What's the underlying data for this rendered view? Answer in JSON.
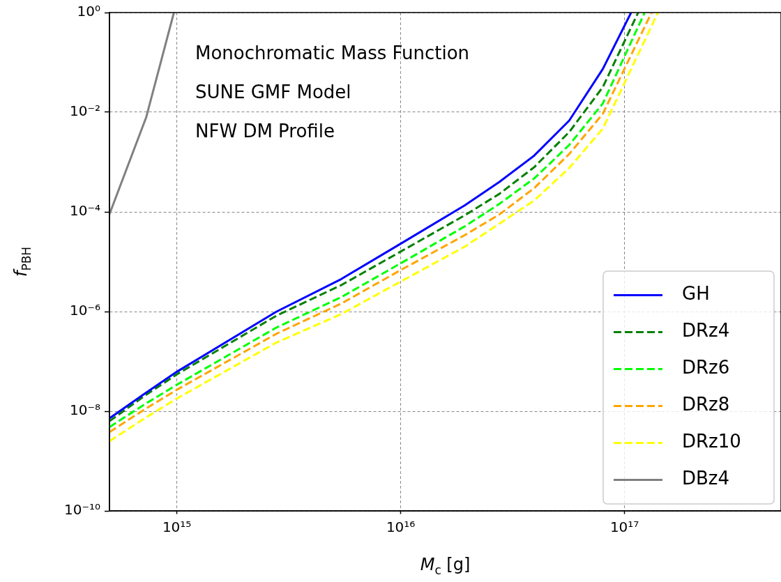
{
  "chart_data": {
    "type": "line",
    "xlabel": "M$_{c}$ [g]",
    "ylabel": "f$_{PBH}$",
    "annotations": [
      "Monochromatic Mass Function",
      "SUNE GMF Model",
      "NFW DM Profile"
    ],
    "log": "xy",
    "grid": true,
    "legend": "bottom right",
    "marker": "none",
    "xlim": [
      500000000000000.0,
      5e+17
    ],
    "ylim": [
      1e-10,
      1
    ],
    "xticks": [
      {
        "value": 1000000000000000.0,
        "label": "10¹⁵"
      },
      {
        "value": 1e+16,
        "label": "10¹⁶"
      },
      {
        "value": 1e+17,
        "label": "10¹⁷"
      }
    ],
    "yticks": [
      {
        "value": 1e-10,
        "label": "10⁻¹⁰"
      },
      {
        "value": 1e-08,
        "label": "10⁻⁸"
      },
      {
        "value": 1e-06,
        "label": "10⁻⁶"
      },
      {
        "value": 0.0001,
        "label": "10⁻⁴"
      },
      {
        "value": 0.01,
        "label": "10⁻²"
      },
      {
        "value": 1,
        "label": "10⁰"
      }
    ],
    "series": [
      {
        "name": "GH",
        "color": "#0000ff",
        "line_style": "solid",
        "x": [
          500000000000000.0,
          713000000000000.0,
          1000000000000000.0,
          2790000000000000.0,
          5430000000000000.0,
          1e+16,
          1.93e+16,
          2.76e+16,
          3.95e+16,
          5.66e+16,
          8e+16,
          1.07e+17
        ],
        "values": [
          7.2e-09,
          2.2e-08,
          6.2e-08,
          1e-06,
          4.5e-06,
          2.3e-05,
          0.000135,
          0.0004,
          0.00135,
          0.0068,
          0.074,
          1
        ]
      },
      {
        "name": "DRz4",
        "color": "#008000",
        "line_style": "dashed",
        "x": [
          500000000000000.0,
          713000000000000.0,
          1000000000000000.0,
          2790000000000000.0,
          5430000000000000.0,
          1e+16,
          1.93e+16,
          2.76e+16,
          3.95e+16,
          5.66e+16,
          8e+16,
          1.15e+17
        ],
        "values": [
          6.3e-09,
          2e-08,
          5.5e-08,
          8.3e-07,
          3.4e-06,
          1.6e-05,
          8.5e-05,
          0.00023,
          0.00079,
          0.004,
          0.032,
          1
        ]
      },
      {
        "name": "DRz6",
        "color": "#00ff00",
        "line_style": "dashed",
        "x": [
          500000000000000.0,
          713000000000000.0,
          1000000000000000.0,
          2790000000000000.0,
          5430000000000000.0,
          1e+16,
          1.93e+16,
          2.76e+16,
          3.95e+16,
          5.66e+16,
          8e+16,
          1.23e+17
        ],
        "values": [
          4.8e-09,
          1.35e-08,
          3.4e-08,
          4.8e-07,
          1.95e-06,
          9.3e-06,
          5.1e-05,
          0.000145,
          0.00047,
          0.0022,
          0.015,
          1
        ]
      },
      {
        "name": "DRz8",
        "color": "#ffa500",
        "line_style": "dashed",
        "x": [
          500000000000000.0,
          713000000000000.0,
          1000000000000000.0,
          2790000000000000.0,
          5430000000000000.0,
          1e+16,
          1.93e+16,
          2.76e+16,
          3.95e+16,
          5.66e+16,
          8e+16,
          1.32e+17
        ],
        "values": [
          3.8e-09,
          1.07e-08,
          2.7e-08,
          3.6e-07,
          1.45e-06,
          6.8e-06,
          3.4e-05,
          8.9e-05,
          0.0003,
          0.00145,
          0.0093,
          1
        ]
      },
      {
        "name": "DRz10",
        "color": "#ffff00",
        "line_style": "dashed",
        "x": [
          500000000000000.0,
          713000000000000.0,
          1000000000000000.0,
          2790000000000000.0,
          5430000000000000.0,
          1e+16,
          1.93e+16,
          2.76e+16,
          3.95e+16,
          5.66e+16,
          8e+16,
          1.41e+17
        ],
        "values": [
          2.5e-09,
          7.1e-09,
          1.8e-08,
          2.4e-07,
          8.9e-07,
          4e-06,
          2e-05,
          5.8e-05,
          0.00017,
          0.00076,
          0.0047,
          1
        ]
      },
      {
        "name": "DBz4",
        "color": "#808080",
        "line_style": "solid",
        "x": [
          500000000000000.0,
          730000000000000.0,
          970000000000000.0
        ],
        "values": [
          9e-05,
          0.008,
          1
        ]
      }
    ]
  }
}
